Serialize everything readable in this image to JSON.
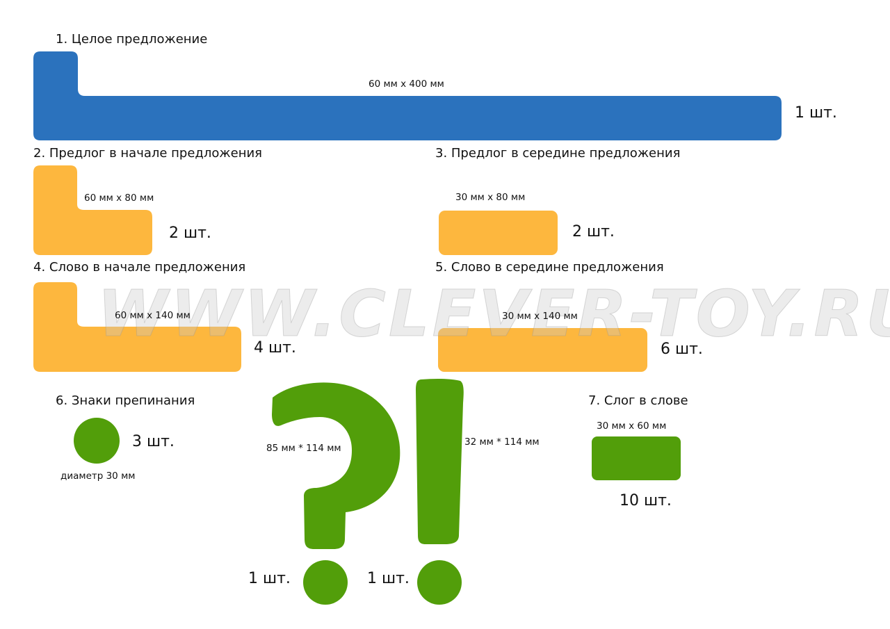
{
  "colors": {
    "blue": "#2b72bd",
    "yellow": "#fdb73e",
    "green": "#529e0a"
  },
  "watermark": "WWW.CLEVER-TOY.RU",
  "items": [
    {
      "heading": "1. Целое предложение",
      "size": "60 мм x 400 мм",
      "qty": "1 шт."
    },
    {
      "heading": "2. Предлог в начале предложения",
      "size": "60 мм x 80 мм",
      "qty": "2 шт."
    },
    {
      "heading": "3. Предлог в середине предложения",
      "size": "30 мм x 80 мм",
      "qty": "2 шт."
    },
    {
      "heading": "4. Слово в начале предложения",
      "size": "60 мм x 140 мм",
      "qty": "4 шт."
    },
    {
      "heading": "5. Слово в середине предложения",
      "size": "30 мм x 140 мм",
      "qty": "6 шт."
    },
    {
      "heading": "6. Знаки препинания",
      "size": "диаметр 30 мм",
      "qty": "3 шт."
    },
    {
      "heading": "7. Слог в слове",
      "size": "30 мм x 60 мм",
      "qty": "10 шт."
    }
  ],
  "question_mark": {
    "size": "85 мм * 114 мм",
    "qty": "1 шт."
  },
  "exclamation_mark": {
    "size": "32 мм * 114 мм",
    "qty": "1 шт."
  }
}
